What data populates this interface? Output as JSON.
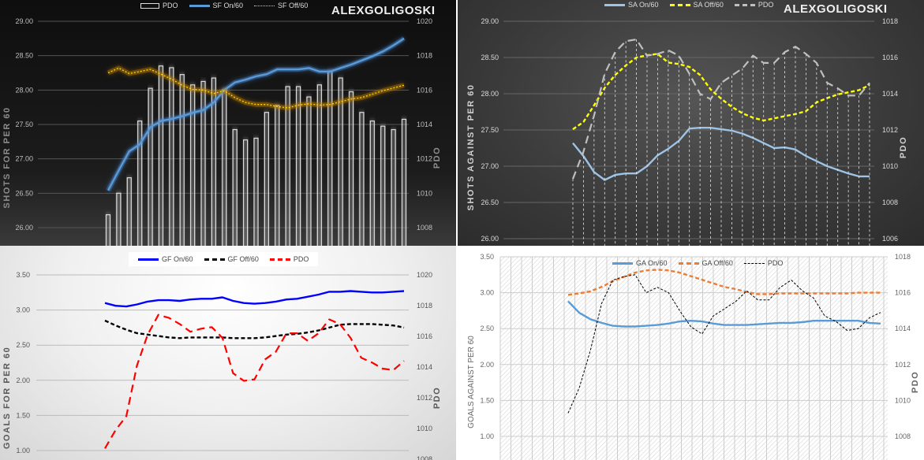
{
  "watermark": "ALEXGOLIGOSKI",
  "chart_data": [
    {
      "type": "bar+line",
      "title": "",
      "ylabel": "SHOTS FOR PER 60",
      "y2label": "PDO",
      "ylim": [
        26,
        29
      ],
      "y2lim": [
        1008,
        1020
      ],
      "yticks": [
        "29.00",
        "28.50",
        "28.00",
        "27.50",
        "27.00",
        "26.50",
        "26.00"
      ],
      "y2ticks": [
        "1020",
        "1018",
        "1016",
        "1014",
        "1012",
        "1010",
        "1008"
      ],
      "legend_position": "top-center",
      "series": [
        {
          "name": "PDO",
          "axis": "right",
          "kind": "bar",
          "color": "#dddddd",
          "values": [
            1008.75,
            1010.0,
            1010.9,
            1014.2,
            1016.1,
            1017.4,
            1017.3,
            1016.9,
            1016.3,
            1016.5,
            1016.7,
            1016.0,
            1013.7,
            1013.1,
            1013.2,
            1014.7,
            1015.1,
            1016.2,
            1016.2,
            1015.6,
            1016.3,
            1017.1,
            1016.7,
            1015.9,
            1014.7,
            1014.2,
            1013.9,
            1013.7,
            1014.3
          ]
        },
        {
          "name": "SF On/60",
          "axis": "left",
          "kind": "line",
          "color": "#5b9bd5",
          "values": [
            26.54,
            26.83,
            27.11,
            27.21,
            27.46,
            27.55,
            27.58,
            27.62,
            27.67,
            27.71,
            27.82,
            28.0,
            28.11,
            28.15,
            28.2,
            28.23,
            28.3,
            28.3,
            28.3,
            28.32,
            28.27,
            28.27,
            28.32,
            28.37,
            28.43,
            28.49,
            28.56,
            28.65,
            28.75
          ]
        },
        {
          "name": "SF Off/60",
          "axis": "left",
          "kind": "dotted",
          "color": "#ffd700",
          "values": [
            28.25,
            28.32,
            28.24,
            28.27,
            28.3,
            28.23,
            28.16,
            28.07,
            28.01,
            28.0,
            27.95,
            27.99,
            27.89,
            27.82,
            27.79,
            27.79,
            27.76,
            27.74,
            27.78,
            27.8,
            27.78,
            27.79,
            27.83,
            27.87,
            27.89,
            27.94,
            27.99,
            28.03,
            28.07
          ]
        }
      ]
    },
    {
      "type": "line",
      "title": "",
      "ylabel": "SHOTS AGAINST PER 60",
      "y2label": "PDO",
      "ylim": [
        26,
        29
      ],
      "y2lim": [
        1006,
        1018
      ],
      "yticks": [
        "29.00",
        "28.50",
        "28.00",
        "27.50",
        "27.00",
        "26.50",
        "26.00"
      ],
      "y2ticks": [
        "1018",
        "1016",
        "1014",
        "1012",
        "1010",
        "1008",
        "1006"
      ],
      "legend_position": "top-center",
      "series": [
        {
          "name": "SA On/60",
          "axis": "left",
          "kind": "line",
          "color": "#9dc3e6",
          "values": [
            27.32,
            27.14,
            26.92,
            26.81,
            26.88,
            26.9,
            26.9,
            27.0,
            27.15,
            27.24,
            27.35,
            27.52,
            27.53,
            27.53,
            27.51,
            27.49,
            27.45,
            27.39,
            27.32,
            27.25,
            27.26,
            27.23,
            27.14,
            27.07,
            27.0,
            26.95,
            26.9,
            26.86,
            26.86
          ]
        },
        {
          "name": "SA Off/60",
          "axis": "left",
          "kind": "dashed",
          "color": "#ffff00",
          "values": [
            27.51,
            27.61,
            27.84,
            28.08,
            28.26,
            28.39,
            28.5,
            28.53,
            28.55,
            28.43,
            28.41,
            28.37,
            28.26,
            28.06,
            27.93,
            27.82,
            27.73,
            27.67,
            27.63,
            27.66,
            27.69,
            27.72,
            27.76,
            27.88,
            27.94,
            27.99,
            28.02,
            28.05,
            28.12
          ]
        },
        {
          "name": "PDO",
          "axis": "right",
          "kind": "longdash",
          "color": "#bfbfbf",
          "values": [
            1009.3,
            1010.8,
            1012.8,
            1015.1,
            1016.3,
            1016.9,
            1017.0,
            1016.1,
            1016.2,
            1016.4,
            1016.1,
            1015.1,
            1014.0,
            1013.7,
            1014.6,
            1015.0,
            1015.4,
            1016.1,
            1015.7,
            1015.7,
            1016.3,
            1016.6,
            1016.2,
            1015.7,
            1014.6,
            1014.3,
            1013.9,
            1013.9,
            1014.6
          ]
        }
      ]
    },
    {
      "type": "line",
      "title": "",
      "ylabel": "GOALS FOR PER 60",
      "y2label": "PDO",
      "ylim": [
        1.0,
        3.5
      ],
      "y2lim": [
        1008,
        1020
      ],
      "yticks": [
        "3.50",
        "3.00",
        "2.50",
        "2.00",
        "1.50",
        "1.00"
      ],
      "y2ticks": [
        "1020",
        "1018",
        "1016",
        "1014",
        "1012",
        "1010",
        "1008"
      ],
      "legend_position": "top-center",
      "series": [
        {
          "name": "GF On/60",
          "axis": "left",
          "kind": "line",
          "color": "#0000ff",
          "values": [
            3.1,
            3.06,
            3.05,
            3.08,
            3.12,
            3.14,
            3.14,
            3.13,
            3.15,
            3.16,
            3.16,
            3.18,
            3.13,
            3.1,
            3.09,
            3.1,
            3.12,
            3.15,
            3.16,
            3.19,
            3.22,
            3.26,
            3.26,
            3.27,
            3.26,
            3.25,
            3.25,
            3.26,
            3.27
          ]
        },
        {
          "name": "GF Off/60",
          "axis": "left",
          "kind": "dashed",
          "color": "#000000",
          "values": [
            2.85,
            2.78,
            2.72,
            2.67,
            2.65,
            2.63,
            2.61,
            2.6,
            2.61,
            2.61,
            2.61,
            2.61,
            2.6,
            2.6,
            2.6,
            2.61,
            2.63,
            2.65,
            2.66,
            2.68,
            2.71,
            2.75,
            2.79,
            2.8,
            2.8,
            2.8,
            2.79,
            2.78,
            2.75
          ]
        },
        {
          "name": "PDO",
          "axis": "right",
          "kind": "longdash",
          "color": "#ff0000",
          "values": [
            1008.7,
            1009.9,
            1010.8,
            1014.1,
            1016.1,
            1017.4,
            1017.2,
            1016.8,
            1016.3,
            1016.5,
            1016.6,
            1015.9,
            1013.6,
            1013.1,
            1013.2,
            1014.5,
            1015.0,
            1016.2,
            1016.2,
            1015.7,
            1016.2,
            1017.1,
            1016.8,
            1015.9,
            1014.6,
            1014.3,
            1013.9,
            1013.8,
            1014.4
          ]
        }
      ]
    },
    {
      "type": "line",
      "title": "",
      "ylabel": "GOALS AGAINST PER 60",
      "y2label": "PDO",
      "ylim": [
        1.0,
        3.5
      ],
      "y2lim": [
        1008,
        1018
      ],
      "yticks": [
        "3.50",
        "3.00",
        "2.50",
        "2.00",
        "1.50",
        "1.00"
      ],
      "y2ticks": [
        "1018",
        "1016",
        "1014",
        "1012",
        "1010",
        "1008"
      ],
      "legend_position": "top-center",
      "series": [
        {
          "name": "GA On/60",
          "axis": "left",
          "kind": "line",
          "color": "#5b9bd5",
          "values": [
            2.88,
            2.72,
            2.63,
            2.58,
            2.54,
            2.53,
            2.53,
            2.54,
            2.55,
            2.57,
            2.6,
            2.61,
            2.6,
            2.57,
            2.55,
            2.55,
            2.55,
            2.56,
            2.57,
            2.58,
            2.58,
            2.59,
            2.61,
            2.61,
            2.61,
            2.61,
            2.61,
            2.58,
            2.57
          ]
        },
        {
          "name": "GA Off/60",
          "axis": "left",
          "kind": "dashed",
          "color": "#ed7d31",
          "values": [
            2.97,
            2.99,
            3.02,
            3.08,
            3.16,
            3.22,
            3.28,
            3.31,
            3.32,
            3.31,
            3.28,
            3.23,
            3.18,
            3.13,
            3.08,
            3.05,
            3.01,
            2.98,
            2.98,
            2.99,
            2.99,
            2.99,
            2.99,
            2.99,
            2.99,
            2.99,
            3.0,
            3.0,
            3.0
          ]
        },
        {
          "name": "PDO",
          "axis": "right",
          "kind": "thindash",
          "color": "#000000",
          "values": [
            1009.3,
            1010.7,
            1012.8,
            1015.4,
            1016.7,
            1016.9,
            1017.0,
            1016.0,
            1016.3,
            1016.0,
            1015.0,
            1014.1,
            1013.7,
            1014.7,
            1015.1,
            1015.5,
            1016.1,
            1015.6,
            1015.6,
            1016.3,
            1016.7,
            1016.1,
            1015.7,
            1014.7,
            1014.4,
            1013.9,
            1014.0,
            1014.6,
            1014.9
          ]
        }
      ]
    }
  ]
}
